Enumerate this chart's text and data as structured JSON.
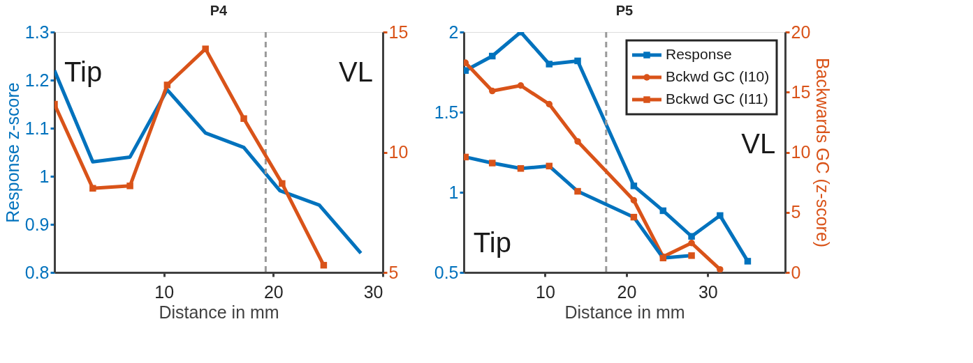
{
  "chart_data": [
    {
      "type": "line",
      "title": "P4",
      "xlabel": "Distance in mm",
      "ylabel": "Response z-score",
      "xlim": [
        0,
        30
      ],
      "xticks": [
        10,
        20,
        30
      ],
      "ylim": [
        0.8,
        1.3
      ],
      "yticks": [
        0.8,
        0.9,
        1,
        1.1,
        1.2,
        1.3
      ],
      "y2lim": [
        5,
        15
      ],
      "y2ticks": [
        5,
        10,
        15
      ],
      "grid": false,
      "legend": false,
      "line_style": "solid",
      "series": [
        {
          "color": "#0072bd",
          "marker": "none",
          "x": [
            0,
            3.5,
            6.9,
            10.3,
            13.8,
            17.3,
            20.6,
            24.2,
            28.0
          ],
          "values": [
            1.22,
            1.03,
            1.04,
            1.18,
            1.09,
            1.06,
            0.97,
            0.94,
            0.84
          ]
        },
        {
          "color": "#d95319",
          "marker": "square",
          "axis": "y2",
          "x": [
            0,
            3.5,
            6.9,
            10.3,
            13.8,
            17.3,
            20.8,
            24.6
          ],
          "values": [
            12.0,
            8.5,
            8.6,
            12.8,
            14.3,
            11.4,
            8.7,
            5.3
          ]
        }
      ],
      "ref_lines": [
        {
          "axis": "x",
          "value": 19.3,
          "color": "#999999",
          "line_style": "dashed"
        }
      ],
      "annotations": [
        "Tip",
        "VL"
      ]
    },
    {
      "type": "line",
      "title": "P5",
      "xlabel": "Distance in mm",
      "y2label": "Backwards GC (z-score)",
      "xlim": [
        0,
        39.5
      ],
      "xticks": [
        10,
        20,
        30
      ],
      "ylim": [
        0.5,
        2
      ],
      "yticks": [
        0.5,
        1,
        1.5,
        2
      ],
      "y2lim": [
        0,
        20
      ],
      "y2ticks": [
        0,
        5,
        10,
        15,
        20
      ],
      "grid": false,
      "legend": "top right",
      "line_style": "solid",
      "series": [
        {
          "name": "Response",
          "color": "#0072bd",
          "marker": "square",
          "x": [
            0.2,
            3.5,
            7.0,
            10.5,
            14.0,
            20.9,
            24.5,
            28.0,
            31.5,
            34.9
          ],
          "values": [
            1.76,
            1.85,
            2.0,
            1.8,
            1.82,
            1.04,
            0.885,
            0.725,
            0.855,
            0.57
          ]
        },
        {
          "name": "Bckwd GC (I10)",
          "color": "#d95319",
          "marker": "circle",
          "axis": "y2",
          "x": [
            0.2,
            3.5,
            7.0,
            10.5,
            14.0,
            20.9,
            24.5,
            28.0,
            31.5
          ],
          "values": [
            17.45,
            15.1,
            15.55,
            14.0,
            10.9,
            6.0,
            1.3,
            2.45,
            0.25
          ]
        },
        {
          "name": "Bckwd GC (I11)",
          "color": "#d95319",
          "marker": "square",
          "axis": "y2",
          "x": [
            0.2,
            3.5,
            7.0,
            10.5,
            14.0,
            20.9,
            24.5,
            28.0
          ],
          "values": [
            9.6,
            9.1,
            8.65,
            8.85,
            6.75,
            4.6,
            1.2,
            1.4
          ]
        }
      ],
      "ref_lines": [
        {
          "axis": "x",
          "value": 17.5,
          "color": "#999999",
          "line_style": "dashed"
        }
      ],
      "annotations": [
        "Tip",
        "VL"
      ]
    }
  ]
}
